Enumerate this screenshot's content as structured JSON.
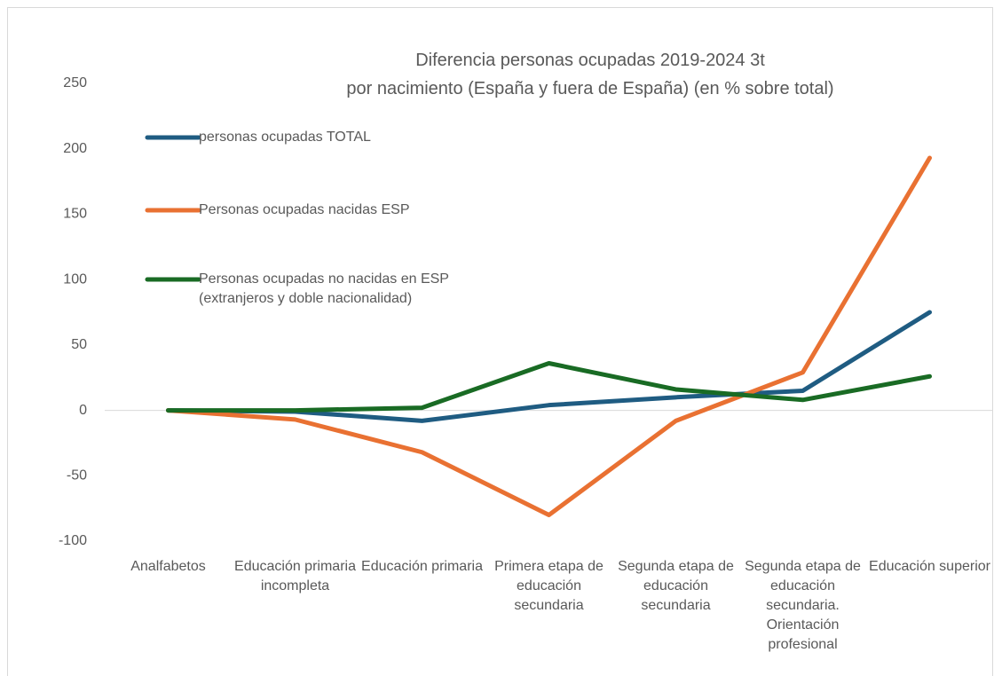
{
  "chart_data": {
    "type": "line",
    "title": [
      "Diferencia personas ocupadas 2019-2024 3t",
      "por nacimiento (España y fuera de España) (en % sobre total)"
    ],
    "categories": [
      "Analfabetos",
      "Educación primaria incompleta",
      "Educación primaria",
      "Primera etapa de educación secundaria",
      "Segunda etapa de educación secundaria",
      "Segunda etapa de educación secundaria. Orientación profesional",
      "Educación superior"
    ],
    "series": [
      {
        "name": "personas ocupadas TOTAL",
        "color": "#1f5c82",
        "values": [
          0,
          -1,
          -8,
          4,
          10,
          15,
          75
        ]
      },
      {
        "name": "Personas ocupadas nacidas ESP",
        "color": "#e97132",
        "values": [
          0,
          -7,
          -32,
          -80,
          -8,
          29,
          193
        ]
      },
      {
        "name": "Personas ocupadas no nacidas en ESP (extranjeros y doble nacionalidad)",
        "color": "#196b24",
        "values": [
          0,
          0,
          2,
          36,
          16,
          8,
          26
        ]
      }
    ],
    "ylim": [
      -100,
      250
    ],
    "yticks": [
      -100,
      -50,
      0,
      50,
      100,
      150,
      200,
      250
    ],
    "grid": false,
    "legend": "top-left"
  }
}
